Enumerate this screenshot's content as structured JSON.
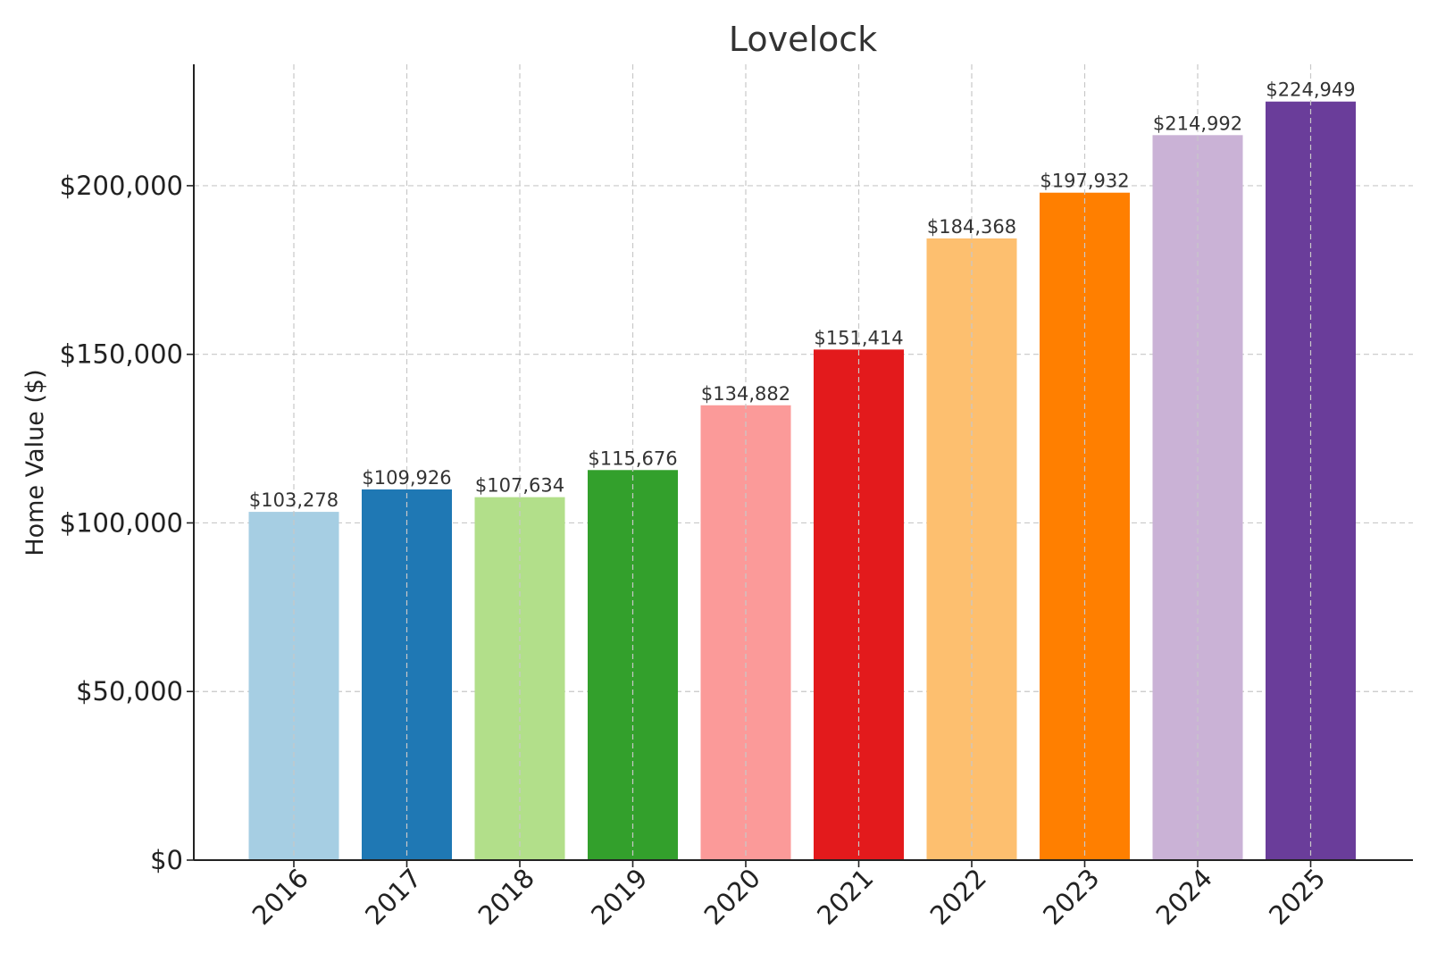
{
  "chart_data": {
    "type": "bar",
    "title": "Lovelock",
    "xlabel": "",
    "ylabel": "Home Value ($)",
    "categories": [
      "2016",
      "2017",
      "2018",
      "2019",
      "2020",
      "2021",
      "2022",
      "2023",
      "2024",
      "2025"
    ],
    "values": [
      103278,
      109926,
      107634,
      115676,
      134882,
      151414,
      184368,
      197932,
      214992,
      224949
    ],
    "data_labels": [
      "$103,278",
      "$109,926",
      "$107,634",
      "$115,676",
      "$134,882",
      "$151,414",
      "$184,368",
      "$197,932",
      "$214,992",
      "$224,949"
    ],
    "colors": [
      "#a6cee3",
      "#1f78b4",
      "#b2df8a",
      "#33a02c",
      "#fb9a99",
      "#e31a1c",
      "#fdbf6f",
      "#ff7f00",
      "#cab2d6",
      "#6a3d9a"
    ],
    "ylim": [
      0,
      236000
    ],
    "yticks": [
      0,
      50000,
      100000,
      150000,
      200000
    ],
    "ytick_labels": [
      "$0",
      "$50,000",
      "$100,000",
      "$150,000",
      "$200,000"
    ],
    "grid": true
  }
}
